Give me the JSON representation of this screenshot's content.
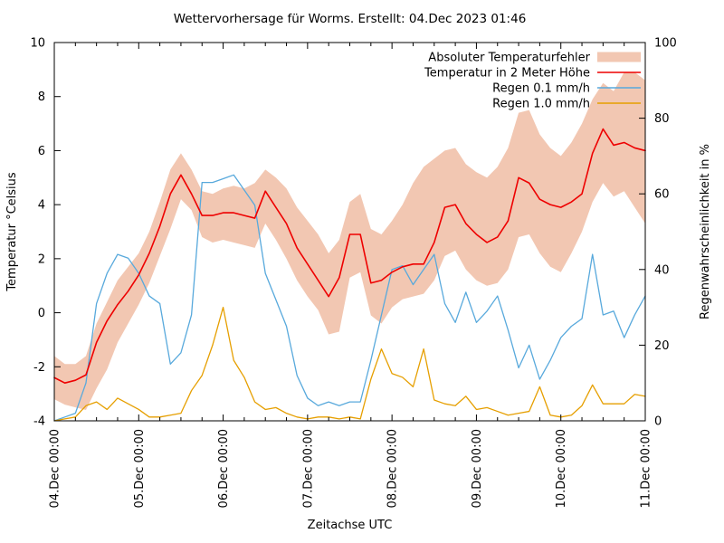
{
  "window": {
    "background": "#ffffff"
  },
  "chart_data": {
    "type": "line",
    "title": "Wettervorhersage für Worms. Erstellt: 04.Dec 2023 01:46",
    "xlabel": "Zeitachse UTC",
    "ylabel_left": "Temperatur °Celsius",
    "ylabel_right": "Regenwahrscheinlichkeit in %",
    "y_left_range": [
      -4,
      10
    ],
    "y_left_ticks": [
      -4,
      -2,
      0,
      2,
      4,
      6,
      8,
      10
    ],
    "y_right_range": [
      0,
      100
    ],
    "y_right_ticks": [
      0,
      20,
      40,
      60,
      80,
      100
    ],
    "x_range_hours": [
      0,
      168
    ],
    "x_minor_step_hours": 6,
    "x_ticks_hours": [
      0,
      24,
      48,
      72,
      96,
      120,
      144,
      168
    ],
    "x_tick_labels": [
      "04.Dec 00:00",
      "05.Dec 00:00",
      "06.Dec 00:00",
      "07.Dec 00:00",
      "08.Dec 00:00",
      "09.Dec 00:00",
      "10.Dec 00:00",
      "11.Dec 00:00"
    ],
    "grid": false,
    "legend_position": "top-right-inside",
    "legend": [
      {
        "label": "Absoluter Temperaturfehler",
        "type": "band",
        "color": "#f2c7b2"
      },
      {
        "label": "Temperatur in 2 Meter Höhe",
        "type": "line",
        "color": "#ee0000"
      },
      {
        "label": "Regen 0.1 mm/h",
        "type": "line",
        "color": "#58a9dc"
      },
      {
        "label": "Regen 1.0 mm/h",
        "type": "line",
        "color": "#e69f00"
      }
    ],
    "x_hours": [
      0,
      3,
      6,
      9,
      12,
      15,
      18,
      21,
      24,
      27,
      30,
      33,
      36,
      39,
      42,
      45,
      48,
      51,
      54,
      57,
      60,
      63,
      66,
      69,
      72,
      75,
      78,
      81,
      84,
      87,
      90,
      93,
      96,
      99,
      102,
      105,
      108,
      111,
      114,
      117,
      120,
      123,
      126,
      129,
      132,
      135,
      138,
      141,
      144,
      147,
      150,
      153,
      156,
      159,
      162,
      165,
      168
    ],
    "series": [
      {
        "name": "Absoluter Temperaturfehler",
        "axis": "left",
        "type": "band",
        "color": "#f2c7b2",
        "upper": [
          -1.6,
          -1.9,
          -1.9,
          -1.6,
          -0.4,
          0.4,
          1.2,
          1.7,
          2.2,
          3.0,
          4.1,
          5.3,
          5.9,
          5.3,
          4.5,
          4.4,
          4.6,
          4.7,
          4.6,
          4.8,
          5.3,
          5.0,
          4.6,
          3.9,
          3.4,
          2.9,
          2.2,
          2.7,
          4.1,
          4.4,
          3.1,
          2.9,
          3.4,
          4.0,
          4.8,
          5.4,
          5.7,
          6.0,
          6.1,
          5.5,
          5.2,
          5.0,
          5.4,
          6.1,
          7.4,
          7.5,
          6.6,
          6.1,
          5.8,
          6.3,
          7.0,
          7.9,
          8.5,
          8.2,
          8.9,
          8.9,
          8.6
        ],
        "lower": [
          -3.2,
          -3.4,
          -3.5,
          -3.6,
          -2.8,
          -2.1,
          -1.1,
          -0.4,
          0.3,
          1.1,
          2.1,
          3.1,
          4.2,
          3.8,
          2.8,
          2.6,
          2.7,
          2.6,
          2.5,
          2.4,
          3.3,
          2.7,
          2.0,
          1.2,
          0.6,
          0.1,
          -0.8,
          -0.7,
          1.3,
          1.5,
          -0.1,
          -0.4,
          0.2,
          0.5,
          0.6,
          0.7,
          1.2,
          2.1,
          2.3,
          1.6,
          1.2,
          1.0,
          1.1,
          1.6,
          2.8,
          2.9,
          2.2,
          1.7,
          1.5,
          2.2,
          3.0,
          4.1,
          4.8,
          4.3,
          4.5,
          3.9,
          3.3
        ]
      },
      {
        "name": "Temperatur in 2 Meter Höhe",
        "axis": "left",
        "type": "line",
        "color": "#ee0000",
        "values": [
          -2.4,
          -2.6,
          -2.5,
          -2.3,
          -1.1,
          -0.3,
          0.3,
          0.8,
          1.4,
          2.2,
          3.2,
          4.4,
          5.1,
          4.4,
          3.6,
          3.6,
          3.7,
          3.7,
          3.6,
          3.5,
          4.5,
          3.9,
          3.3,
          2.4,
          1.8,
          1.2,
          0.6,
          1.3,
          2.9,
          2.9,
          1.1,
          1.2,
          1.5,
          1.7,
          1.8,
          1.8,
          2.6,
          3.9,
          4.0,
          3.3,
          2.9,
          2.6,
          2.8,
          3.4,
          5.0,
          4.8,
          4.2,
          4.0,
          3.9,
          4.1,
          4.4,
          5.9,
          6.8,
          6.2,
          6.3,
          6.1,
          6.0
        ]
      },
      {
        "name": "Regen 0.1 mm/h",
        "axis": "right",
        "type": "line",
        "color": "#58a9dc",
        "values": [
          0,
          1,
          2,
          10,
          31,
          39,
          44,
          43,
          39,
          33,
          31,
          15,
          18,
          28,
          63,
          63,
          64,
          65,
          61,
          57,
          39,
          32,
          25,
          12,
          6,
          4,
          5,
          4,
          5,
          5,
          16,
          28,
          40,
          41,
          36,
          40,
          44,
          31,
          26,
          34,
          26,
          29,
          33,
          24,
          14,
          20,
          11,
          16,
          22,
          25,
          27,
          44,
          28,
          29,
          22,
          28,
          33
        ]
      },
      {
        "name": "Regen 1.0 mm/h",
        "axis": "right",
        "type": "line",
        "color": "#e69f00",
        "values": [
          0,
          0.5,
          1,
          4,
          5,
          3,
          6,
          4.5,
          3,
          1,
          1,
          1.5,
          2,
          8,
          12,
          20,
          30,
          16,
          11.5,
          5,
          3,
          3.5,
          2,
          1,
          0.5,
          1,
          1,
          0.5,
          1,
          0.5,
          11,
          19,
          12.5,
          11.5,
          9,
          19,
          5.5,
          4.5,
          4,
          6.5,
          3,
          3.5,
          2.5,
          1.5,
          2,
          2.5,
          9,
          1.5,
          1,
          1.5,
          4,
          9.5,
          4.5,
          4.5,
          4.5,
          7,
          6.5
        ]
      }
    ]
  }
}
